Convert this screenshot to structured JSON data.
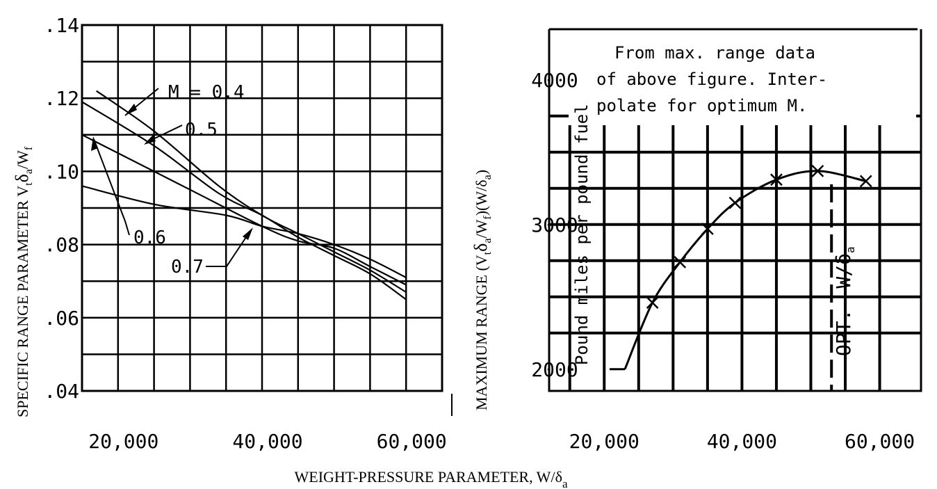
{
  "colors": {
    "ink": "#000000",
    "paper": "#ffffff"
  },
  "x_label": "WEIGHT-PRESSURE PARAMETER, W/δ",
  "x_label_sub": "a",
  "chart_data": [
    {
      "type": "line",
      "xlabel": "",
      "ylabel": "SPECIFIC RANGE PARAMETER V",
      "ylabel_parts": [
        "t",
        "δ",
        "a",
        "/W",
        "f"
      ],
      "xlim": [
        15000,
        65000
      ],
      "ylim": [
        0.04,
        0.14
      ],
      "x_ticks": [
        20000,
        40000,
        60000
      ],
      "x_tick_labels": [
        "20,000",
        "40,000",
        "60,000"
      ],
      "y_ticks": [
        0.04,
        0.06,
        0.08,
        0.1,
        0.12,
        0.14
      ],
      "y_tick_labels": [
        ".04",
        ".06",
        ".08",
        ".10",
        ".12",
        ".14"
      ],
      "grid": true,
      "series": [
        {
          "name": "M = 0.4",
          "x": [
            17000,
            25000,
            34000,
            40000,
            45000,
            50000,
            55000,
            60000
          ],
          "y": [
            0.122,
            0.111,
            0.096,
            0.088,
            0.083,
            0.078,
            0.073,
            0.067
          ]
        },
        {
          "name": "0.5",
          "x": [
            15000,
            25000,
            34000,
            40000,
            45000,
            50000,
            55000,
            60000
          ],
          "y": [
            0.119,
            0.107,
            0.094,
            0.088,
            0.082,
            0.077,
            0.072,
            0.065
          ]
        },
        {
          "name": "0.6",
          "x": [
            15000,
            20000,
            30000,
            40000,
            45000,
            50000,
            55000,
            60000
          ],
          "y": [
            0.11,
            0.105,
            0.095,
            0.085,
            0.081,
            0.079,
            0.074,
            0.069
          ]
        },
        {
          "name": "0.7",
          "x": [
            15000,
            25000,
            35000,
            40000,
            45000,
            50000,
            55000,
            60000
          ],
          "y": [
            0.096,
            0.091,
            0.088,
            0.085,
            0.083,
            0.08,
            0.076,
            0.071
          ]
        }
      ],
      "annotations": [
        "M = 0.4",
        "0.5",
        "0.6",
        "0.7"
      ]
    },
    {
      "type": "line",
      "xlabel": "",
      "ylabel": "MAXIMUM RANGE (V",
      "ylabel_parts": [
        "t",
        "δ",
        "a",
        "/W",
        "f",
        ")(W/δ",
        "a",
        ")"
      ],
      "ylabel_inner": "Pound miles per pound fuel",
      "xlim": [
        12000,
        66000
      ],
      "ylim": [
        1850,
        4350
      ],
      "x_ticks": [
        20000,
        40000,
        60000
      ],
      "x_tick_labels": [
        "20,000",
        "40,000",
        "60,000"
      ],
      "y_ticks": [
        2000,
        3000,
        4000
      ],
      "y_tick_labels": [
        "2000",
        "3000",
        "4000"
      ],
      "grid": true,
      "series": [
        {
          "name": "",
          "x": [
            23000,
            27000,
            31000,
            35000,
            39000,
            45000,
            51000,
            58000
          ],
          "y": [
            2000,
            2460,
            2740,
            2970,
            3150,
            3310,
            3370,
            3300
          ],
          "markers": "x"
        }
      ],
      "annotation": "From max. range data\nof above figure.  Inter-\npolate for optimum  M.",
      "annotation_lines": [
        "From max. range data",
        "of above figure.  Inter-",
        "polate for optimum  M."
      ],
      "optimum_label": "OPT.",
      "optimum_label_tail": "W/δ",
      "optimum_label_sub": "a",
      "optimum_x": 53000
    }
  ]
}
